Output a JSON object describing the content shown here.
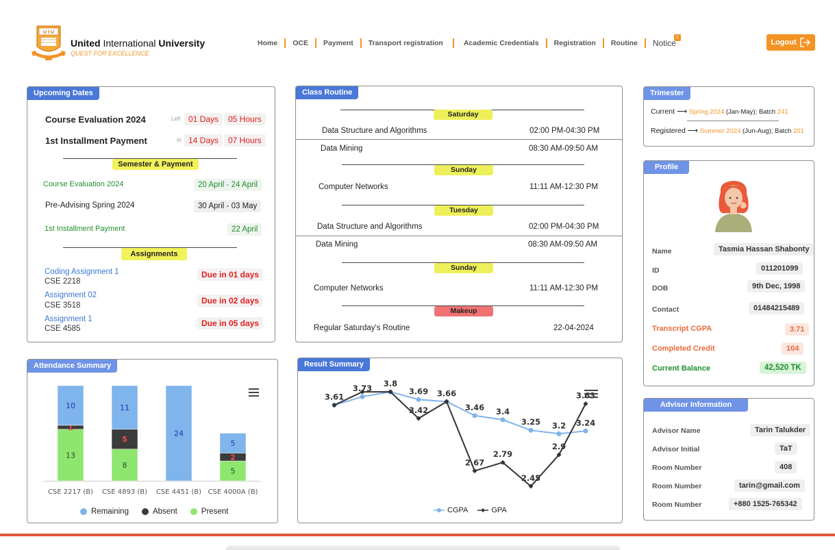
{
  "header": {
    "brand_bold_1": "United",
    "brand_mid": " International ",
    "brand_bold_2": "University",
    "tagline": "QUEST FOR EXCELLENCE",
    "nav": [
      "Home",
      "OCE",
      "Payment",
      "Transport registration",
      "Academic Credentials",
      "Registration",
      "Routine"
    ],
    "notice_label": "Notice",
    "notice_count": "1",
    "logout_label": "Logout"
  },
  "upcoming": {
    "title": "Upcoming Dates",
    "course_eval": {
      "label": "Course Evaluation 2024",
      "prefix": "Left",
      "days": "01 Days",
      "hours": "05 Hours"
    },
    "installment": {
      "label": "1st Installment Payment",
      "prefix": "In",
      "days": "14 Days",
      "hours": "07 Hours"
    },
    "semester_heading": "Semester & Payment",
    "semester_items": [
      {
        "label": "Course Evaluation 2024",
        "date": "20 April - 24 April"
      },
      {
        "label": "Pre-Advising Spring 2024",
        "date": "30 April - 03 May"
      },
      {
        "label": "1st Installment Payment",
        "date": "22 April"
      }
    ],
    "assignments_heading": "Assignments",
    "assignments": [
      {
        "name": "Coding Assignment 1",
        "course": "CSE 2218",
        "due": "Due in 01 days"
      },
      {
        "name": "Assignment 02",
        "course": "CSE 3518",
        "due": "Due in 02 days"
      },
      {
        "name": "Assignment 1",
        "course": "CSE 4585",
        "due": "Due in 05 days"
      }
    ]
  },
  "routine": {
    "title": "Class Routine",
    "days": [
      "Saturday",
      "Sunday",
      "Tuesday",
      "Sunday",
      "Makeup"
    ],
    "classes": [
      {
        "name": "Data Structure and Algorithms",
        "time": "02:00 PM-04:30 PM"
      },
      {
        "name": "Data Mining",
        "time": "08:30 AM-09:50 AM"
      },
      {
        "name": "Computer Networks",
        "time": "11:11 AM-12:30 PM"
      },
      {
        "name": "Data Structure and Algorithms",
        "time": "02:00 PM-04:30 PM"
      },
      {
        "name": "Data Mining",
        "time": "08:30 AM-09:50 AM"
      },
      {
        "name": "Computer Networks",
        "time": "11:11 AM-12:30 PM"
      },
      {
        "name": "Regular Saturday's Routine",
        "time": "22-04-2024"
      }
    ]
  },
  "trimester": {
    "title": "Trimester",
    "current_label": "Current",
    "current_term": "Spring 2024",
    "current_range": "(Jan-May); Batch ",
    "current_batch": "241",
    "registered_label": "Registered",
    "registered_term": "Summer 2024",
    "registered_range": "(Jun-Aug); Batch ",
    "registered_batch": "201"
  },
  "profile": {
    "title": "Profile",
    "name_label": "Name",
    "name": "Tasmia Hassan Shabonty",
    "id_label": "ID",
    "id": "011201099",
    "dob_label": "DOB",
    "dob": "9th Dec, 1998",
    "contact_label": "Contact",
    "contact": "01484215489",
    "cgpa_label": "Transcript CGPA",
    "cgpa": "3.71",
    "credit_label": "Completed Credit",
    "credit": "104",
    "balance_label": "Current Balance",
    "balance": "42,520 TK"
  },
  "advisor": {
    "title": "Advisor Information",
    "name_label": "Advisor Name",
    "name": "Tarin Talukder",
    "initial_label": "Advisor Initial",
    "initial": "TaT",
    "room_label": "Room Number",
    "room": "408",
    "email_label": "Room Number",
    "email": "tarin@gmail.com",
    "phone_label": "Room Number",
    "phone": "+880 1525-765342"
  },
  "attendance": {
    "title": "Attendance Summary",
    "legend": [
      "Remaining",
      "Absent",
      "Present"
    ]
  },
  "result": {
    "title": "Result Summary",
    "legend": [
      "CGPA",
      "GPA"
    ]
  },
  "chart_data": [
    {
      "type": "bar",
      "stacked": true,
      "categories": [
        "CSE 2217 (B)",
        "CSE 4893 (B)",
        "CSE 4451 (B)",
        "CSE 4000A (B)"
      ],
      "series": [
        {
          "name": "Present",
          "values": [
            13,
            8,
            0,
            5
          ],
          "color": "#8ee66f"
        },
        {
          "name": "Absent",
          "values": [
            1,
            5,
            0,
            2
          ],
          "color": "#3b3b3b"
        },
        {
          "name": "Remaining",
          "values": [
            10,
            11,
            24,
            5
          ],
          "color": "#7fb4ec"
        }
      ],
      "legend_position": "bottom"
    },
    {
      "type": "line",
      "x": [
        1,
        2,
        3,
        4,
        5,
        6,
        7,
        8,
        9,
        10
      ],
      "series": [
        {
          "name": "CGPA",
          "values": [
            3.61,
            3.73,
            3.8,
            3.69,
            3.66,
            3.46,
            3.4,
            3.25,
            3.2,
            3.24
          ],
          "color": "#7fb4ec"
        },
        {
          "name": "GPA",
          "values": [
            3.61,
            3.8,
            3.8,
            3.42,
            3.66,
            2.67,
            2.79,
            2.45,
            2.9,
            3.63
          ],
          "color": "#333333"
        }
      ],
      "label_series": "CGPA",
      "point_labels": [
        "3.61",
        "3.73",
        "3.8",
        "3.69",
        "3.66",
        "3.46",
        "3.4",
        "3.25",
        "3.2",
        "3.24"
      ],
      "gpa_labels": [
        "",
        "",
        "",
        "3.42",
        "",
        "2.67",
        "2.79",
        "2.45",
        "2.9",
        "3.63"
      ],
      "legend_position": "bottom"
    }
  ]
}
